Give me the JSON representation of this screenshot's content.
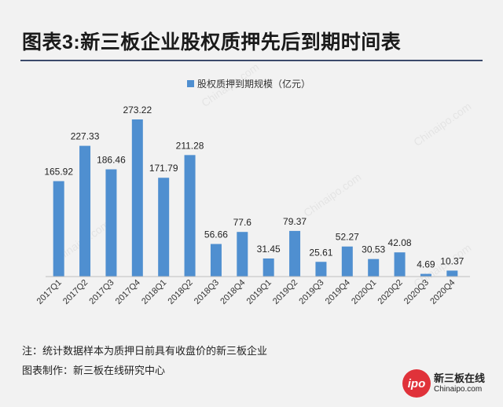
{
  "title": "图表3:新三板企业股权质押先后到期时间表",
  "note": "注：统计数据样本为质押日前具有收盘价的新三板企业",
  "credit": "图表制作：新三板在线研究中心",
  "logo": {
    "cn": "新三板在线",
    "en": "Chinaipo.com",
    "mark": "ipo"
  },
  "watermark_text": "Chinaipo.com",
  "colors": {
    "bar": "#4f8fd0",
    "rule": "#3b4a6b",
    "background": "#f2f2f2"
  },
  "chart_data": {
    "type": "bar",
    "categories": [
      "2017Q1",
      "2017Q2",
      "2017Q3",
      "2017Q4",
      "2018Q1",
      "2018Q2",
      "2018Q3",
      "2018Q4",
      "2019Q1",
      "2019Q2",
      "2019Q3",
      "2019Q4",
      "2020Q1",
      "2020Q2",
      "2020Q3",
      "2020Q4"
    ],
    "series": [
      {
        "name": "股权质押到期规模（亿元）",
        "values": [
          165.92,
          227.33,
          186.46,
          273.22,
          171.79,
          211.28,
          56.66,
          77.6,
          31.45,
          79.37,
          25.61,
          52.27,
          30.53,
          42.08,
          4.69,
          10.37
        ]
      }
    ],
    "data_labels": [
      "165.92",
      "227.33",
      "186.46",
      "273.22",
      "171.79",
      "211.28",
      "56.66",
      "77.6",
      "31.45",
      "79.37",
      "25.61",
      "52.27",
      "30.53",
      "42.08",
      "4.69",
      "10.37"
    ],
    "ylim": [
      0,
      273.22
    ],
    "grid": false,
    "legend": "top-center"
  }
}
